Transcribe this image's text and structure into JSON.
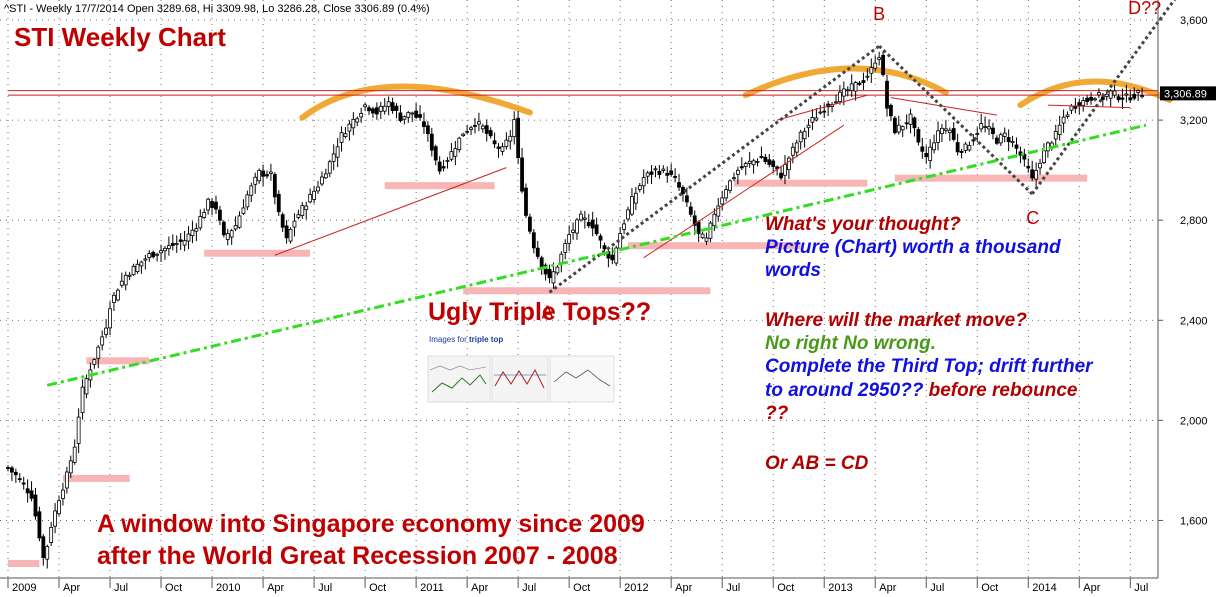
{
  "header": "^STI - Weekly 17/7/2014 Open 3289.68, Hi 3309.98, Lo 3286.28, Close 3306.89 (0.4%)",
  "chart_data": {
    "type": "candlestick",
    "title": "STI Weekly Chart",
    "y_ticks": [
      "3,600",
      "3,200",
      "2,800",
      "2,400",
      "2,000",
      "1,600"
    ],
    "y_tick_values": [
      3600,
      3200,
      2800,
      2400,
      2000,
      1600
    ],
    "ylim": [
      1370,
      3680
    ],
    "x_ticks": [
      "2009",
      "Apr",
      "Jul",
      "Oct",
      "2010",
      "Apr",
      "Jul",
      "Oct",
      "2011",
      "Apr",
      "Jul",
      "Oct",
      "2012",
      "Apr",
      "Jul",
      "Oct",
      "2013",
      "Apr",
      "Jul",
      "Oct",
      "2014",
      "Apr",
      "Jul"
    ],
    "x_tick_weeks": [
      0,
      13,
      26,
      39,
      52,
      65,
      78,
      91,
      104,
      117,
      130,
      143,
      156,
      169,
      182,
      195,
      208,
      221,
      234,
      247,
      260,
      273,
      286
    ],
    "week_count": 290,
    "last_close": "3,306.89",
    "last_close_value": 3306.89,
    "close_path": [
      [
        0,
        1810
      ],
      [
        2,
        1780
      ],
      [
        4,
        1740
      ],
      [
        6,
        1700
      ],
      [
        8,
        1540
      ],
      [
        9,
        1450
      ],
      [
        10,
        1500
      ],
      [
        11,
        1580
      ],
      [
        13,
        1690
      ],
      [
        15,
        1780
      ],
      [
        17,
        1900
      ],
      [
        18,
        2020
      ],
      [
        19,
        2120
      ],
      [
        21,
        2210
      ],
      [
        23,
        2290
      ],
      [
        25,
        2380
      ],
      [
        26,
        2460
      ],
      [
        28,
        2530
      ],
      [
        30,
        2580
      ],
      [
        33,
        2620
      ],
      [
        36,
        2660
      ],
      [
        39,
        2680
      ],
      [
        42,
        2700
      ],
      [
        45,
        2720
      ],
      [
        48,
        2780
      ],
      [
        51,
        2870
      ],
      [
        53,
        2850
      ],
      [
        55,
        2730
      ],
      [
        58,
        2780
      ],
      [
        61,
        2900
      ],
      [
        64,
        2990
      ],
      [
        67,
        2980
      ],
      [
        69,
        2820
      ],
      [
        71,
        2720
      ],
      [
        73,
        2800
      ],
      [
        76,
        2870
      ],
      [
        79,
        2940
      ],
      [
        82,
        3030
      ],
      [
        85,
        3140
      ],
      [
        88,
        3200
      ],
      [
        91,
        3260
      ],
      [
        94,
        3230
      ],
      [
        97,
        3270
      ],
      [
        100,
        3210
      ],
      [
        103,
        3230
      ],
      [
        106,
        3180
      ],
      [
        108,
        3090
      ],
      [
        110,
        3000
      ],
      [
        113,
        3070
      ],
      [
        116,
        3150
      ],
      [
        119,
        3190
      ],
      [
        121,
        3170
      ],
      [
        124,
        3100
      ],
      [
        126,
        3080
      ],
      [
        128,
        3140
      ],
      [
        129,
        3200
      ],
      [
        130,
        3040
      ],
      [
        132,
        2820
      ],
      [
        134,
        2700
      ],
      [
        136,
        2620
      ],
      [
        138,
        2560
      ],
      [
        140,
        2620
      ],
      [
        143,
        2740
      ],
      [
        146,
        2810
      ],
      [
        149,
        2780
      ],
      [
        152,
        2680
      ],
      [
        154,
        2640
      ],
      [
        156,
        2750
      ],
      [
        159,
        2880
      ],
      [
        162,
        2970
      ],
      [
        165,
        3000
      ],
      [
        168,
        2990
      ],
      [
        170,
        2960
      ],
      [
        172,
        2900
      ],
      [
        174,
        2820
      ],
      [
        176,
        2740
      ],
      [
        178,
        2720
      ],
      [
        180,
        2830
      ],
      [
        183,
        2930
      ],
      [
        186,
        3000
      ],
      [
        189,
        3030
      ],
      [
        192,
        3050
      ],
      [
        195,
        3010
      ],
      [
        197,
        2980
      ],
      [
        199,
        3050
      ],
      [
        202,
        3140
      ],
      [
        205,
        3200
      ],
      [
        208,
        3250
      ],
      [
        212,
        3300
      ],
      [
        215,
        3330
      ],
      [
        218,
        3360
      ],
      [
        220,
        3400
      ],
      [
        221,
        3440
      ],
      [
        222,
        3460
      ],
      [
        223,
        3370
      ],
      [
        224,
        3250
      ],
      [
        226,
        3160
      ],
      [
        228,
        3180
      ],
      [
        230,
        3210
      ],
      [
        232,
        3100
      ],
      [
        234,
        3050
      ],
      [
        236,
        3120
      ],
      [
        238,
        3170
      ],
      [
        240,
        3160
      ],
      [
        242,
        3080
      ],
      [
        244,
        3090
      ],
      [
        246,
        3130
      ],
      [
        248,
        3180
      ],
      [
        250,
        3160
      ],
      [
        252,
        3120
      ],
      [
        254,
        3140
      ],
      [
        256,
        3110
      ],
      [
        258,
        3060
      ],
      [
        260,
        3000
      ],
      [
        261,
        2960
      ],
      [
        263,
        3040
      ],
      [
        265,
        3100
      ],
      [
        267,
        3140
      ],
      [
        269,
        3210
      ],
      [
        271,
        3250
      ],
      [
        273,
        3270
      ],
      [
        275,
        3280
      ],
      [
        277,
        3300
      ],
      [
        279,
        3290
      ],
      [
        281,
        3310
      ],
      [
        283,
        3295
      ],
      [
        285,
        3290
      ],
      [
        287,
        3300
      ],
      [
        289,
        3307
      ]
    ],
    "support_line": {
      "start": [
        10,
        2140
      ],
      "end": [
        290,
        3180
      ]
    },
    "resistance_lines": [
      3318,
      3300
    ],
    "points": [
      {
        "label": "A",
        "week": 138,
        "value": 2512
      },
      {
        "label": "B",
        "week": 222,
        "value": 3496
      },
      {
        "label": "C",
        "week": 261,
        "value": 2905
      },
      {
        "label": "D??",
        "week": 288,
        "value": 3700
      }
    ],
    "support_zones": [
      {
        "week_start": 0,
        "week_end": 8,
        "value": 1430
      },
      {
        "week_start": 14,
        "week_end": 31,
        "value": 1770
      },
      {
        "week_start": 20,
        "week_end": 36,
        "value": 2240
      },
      {
        "week_start": 50,
        "week_end": 77,
        "value": 2670
      },
      {
        "week_start": 96,
        "week_end": 124,
        "value": 2940
      },
      {
        "week_start": 116,
        "week_end": 179,
        "value": 2520
      },
      {
        "week_start": 158,
        "week_end": 202,
        "value": 2700
      },
      {
        "week_start": 185,
        "week_end": 219,
        "value": 2950
      },
      {
        "week_start": 226,
        "week_end": 275,
        "value": 2970
      }
    ],
    "trend_lines": [
      {
        "start": [
          68,
          2660
        ],
        "end": [
          127,
          3010
        ]
      },
      {
        "start": [
          162,
          2650
        ],
        "end": [
          213,
          3180
        ]
      },
      {
        "start": [
          196,
          3200
        ],
        "end": [
          219,
          3300
        ]
      },
      {
        "start": [
          225,
          3290
        ],
        "end": [
          252,
          3220
        ]
      },
      {
        "start": [
          265,
          3260
        ],
        "end": [
          286,
          3250
        ]
      }
    ],
    "dotted_lines": [
      {
        "start": [
          138,
          2512
        ],
        "end": [
          222,
          3496
        ]
      },
      {
        "start": [
          222,
          3496
        ],
        "end": [
          261,
          2905
        ]
      },
      {
        "start": [
          261,
          2905
        ],
        "end": [
          300,
          3740
        ]
      }
    ],
    "tops": [
      {
        "start": [
          75,
          3210
        ],
        "peak": [
          95,
          3360
        ],
        "end": [
          133,
          3230
        ]
      },
      {
        "start": [
          188,
          3300
        ],
        "peak": [
          216,
          3420
        ],
        "end": [
          239,
          3310
        ]
      },
      {
        "start": [
          258,
          3260
        ],
        "peak": [
          275,
          3350
        ],
        "end": [
          296,
          3280
        ]
      }
    ]
  },
  "labels": {
    "title": "STI Weekly Chart",
    "ugly": "Ugly Triple Tops??",
    "images_prefix": "Images for ",
    "images_bold": "triple top",
    "thought": "What's your thought?",
    "picture_line1": "Picture (Chart) worth a thousand",
    "picture_line2": "words",
    "where": "Where will the market move?",
    "no_right": "No right No wrong.",
    "complete1": "Complete the Third Top; drift further",
    "complete2": "to around 2950??",
    "before": " before rebounce",
    "qq": "??",
    "or_ab": "Or AB = CD",
    "bottom1": "A window into Singapore economy since 2009",
    "bottom2": "after the World Great Recession 2007 - 2008"
  },
  "colors": {
    "candle": "#000000",
    "support_green": "#33dd22",
    "zone_pink": "#f7b5b5",
    "tops_orange": "#f0a020",
    "resistance_red": "#cc2222",
    "dotted": "#444444",
    "price_tag": "#000000"
  }
}
